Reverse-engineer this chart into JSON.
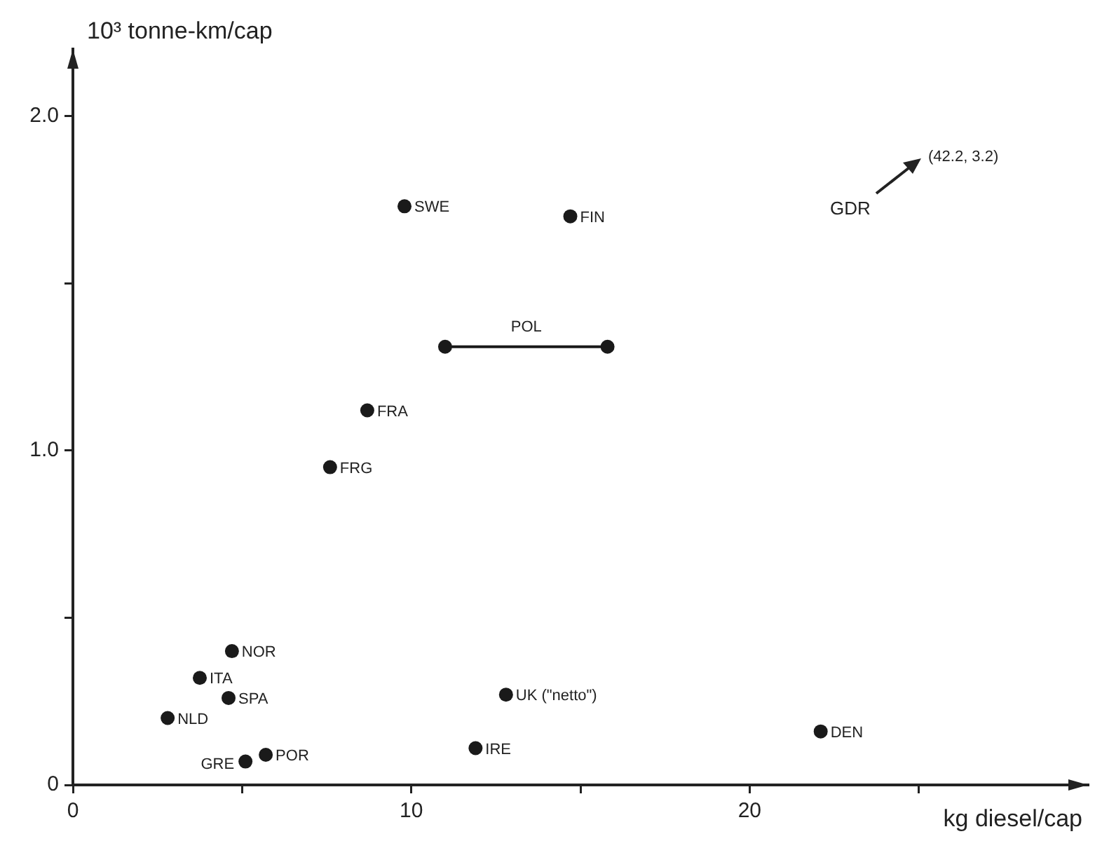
{
  "chart_data": {
    "type": "scatter",
    "xlabel": "kg diesel/cap",
    "ylabel": "10³ tonne-km/cap",
    "xlim": [
      0,
      30
    ],
    "ylim": [
      0,
      2.2
    ],
    "xticks": [
      0,
      {
        "value": 5,
        "label": null
      },
      10,
      {
        "value": 15,
        "label": null
      },
      20,
      {
        "value": 25,
        "label": null
      }
    ],
    "yticks": [
      {
        "value": 0,
        "label": "0"
      },
      {
        "value": 0.5,
        "label": null
      },
      {
        "value": 1,
        "label": "1.0"
      },
      {
        "value": 1.5,
        "label": null
      },
      {
        "value": 2,
        "label": "2.0"
      }
    ],
    "grid": false,
    "legend": false,
    "marker": "circle",
    "series": [
      {
        "color": "#1a1a1a",
        "x": [
          9.8,
          14.7,
          8.7,
          7.6,
          4.7,
          3.75,
          4.6,
          2.8,
          5.1,
          5.7,
          11.9,
          12.8,
          22.1
        ],
        "values": [
          1.73,
          1.7,
          1.12,
          0.95,
          0.4,
          0.32,
          0.26,
          0.2,
          0.07,
          0.09,
          0.11,
          0.27,
          0.16
        ]
      },
      {
        "type": "line",
        "color": "#1a1a1a",
        "x": [
          11.0,
          15.8
        ],
        "values": [
          1.31,
          1.31
        ]
      }
    ],
    "annotations": [
      {
        "text": "SWE",
        "x": 9.8,
        "y": 1.73
      },
      {
        "text": "FIN",
        "x": 14.7,
        "y": 1.7
      },
      {
        "text": "POL",
        "x": 13.4,
        "y": 1.31
      },
      {
        "text": "FRA",
        "x": 8.7,
        "y": 1.12
      },
      {
        "text": "FRG",
        "x": 7.6,
        "y": 0.95
      },
      {
        "text": "NOR",
        "x": 4.7,
        "y": 0.4
      },
      {
        "text": "ITA",
        "x": 3.75,
        "y": 0.32
      },
      {
        "text": "SPA",
        "x": 4.6,
        "y": 0.26
      },
      {
        "text": "NLD",
        "x": 2.8,
        "y": 0.2
      },
      {
        "text": "GRE",
        "x": 5.1,
        "y": 0.07
      },
      {
        "text": "POR",
        "x": 5.7,
        "y": 0.09
      },
      {
        "text": "IRE",
        "x": 11.9,
        "y": 0.11
      },
      {
        "text": "UK (\"netto\")",
        "x": 12.8,
        "y": 0.27
      },
      {
        "text": "DEN",
        "x": 22.1,
        "y": 0.16
      },
      "GDR",
      "(42.2, 3.2)"
    ]
  }
}
